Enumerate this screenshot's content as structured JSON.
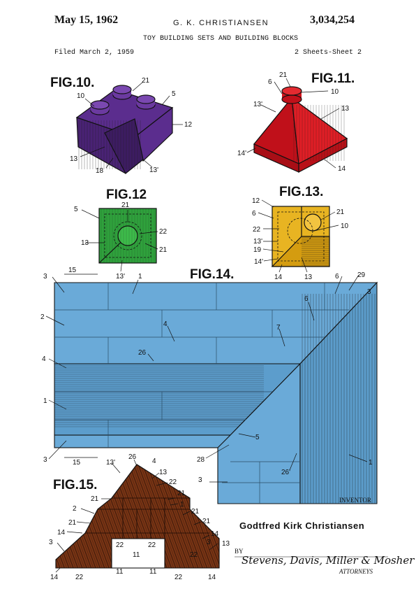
{
  "header": {
    "date": "May 15, 1962",
    "inventor": "G. K. CHRISTIANSEN",
    "patent_number": "3,034,254",
    "title": "TOY BUILDING SETS AND BUILDING BLOCKS",
    "filed": "Filed March 2, 1959",
    "sheets": "2 Sheets-Sheet 2"
  },
  "figures": {
    "fig10": "FIG.10.",
    "fig11": "FIG.11.",
    "fig12": "FIG.12",
    "fig13": "FIG.13.",
    "fig14": "FIG.14.",
    "fig15": "FIG.15."
  },
  "colors": {
    "fig10": "#5b2d8e",
    "fig11": "#d4141c",
    "fig12": "#2fa13c",
    "fig13": "#e8b422",
    "fig14": "#6aaad8",
    "fig15": "#7a3515"
  },
  "refs": {
    "f10": [
      "21",
      "10",
      "5",
      "12",
      "13",
      "18",
      "13'"
    ],
    "f11": [
      "21",
      "6",
      "10",
      "13'",
      "13",
      "14'",
      "14"
    ],
    "f12": [
      "5",
      "21",
      "13",
      "22",
      "21",
      "13'"
    ],
    "f13": [
      "12",
      "6",
      "21",
      "22",
      "10",
      "13'",
      "19",
      "14'",
      "14",
      "13"
    ],
    "f14": [
      "15",
      "1",
      "6",
      "29",
      "3",
      "3",
      "6",
      "2",
      "4",
      "7",
      "26",
      "4",
      "1",
      "5",
      "28",
      "3",
      "15",
      "3",
      "26'",
      "1"
    ],
    "f15": [
      "26",
      "4",
      "13'",
      "13",
      "22",
      "21",
      "21",
      "1",
      "2",
      "21",
      "21",
      "14",
      "21",
      "3",
      "14",
      "22",
      "11",
      "22",
      "3",
      "13",
      "14",
      "22",
      "11",
      "11",
      "22",
      "14",
      "22"
    ]
  },
  "footer": {
    "inventor_label": "INVENTOR",
    "inventor_name": "Godtfred Kirk Christiansen",
    "by": "BY",
    "firm": "Stevens, Davis, Miller & Mosher",
    "attorneys": "ATTORNEYS"
  }
}
